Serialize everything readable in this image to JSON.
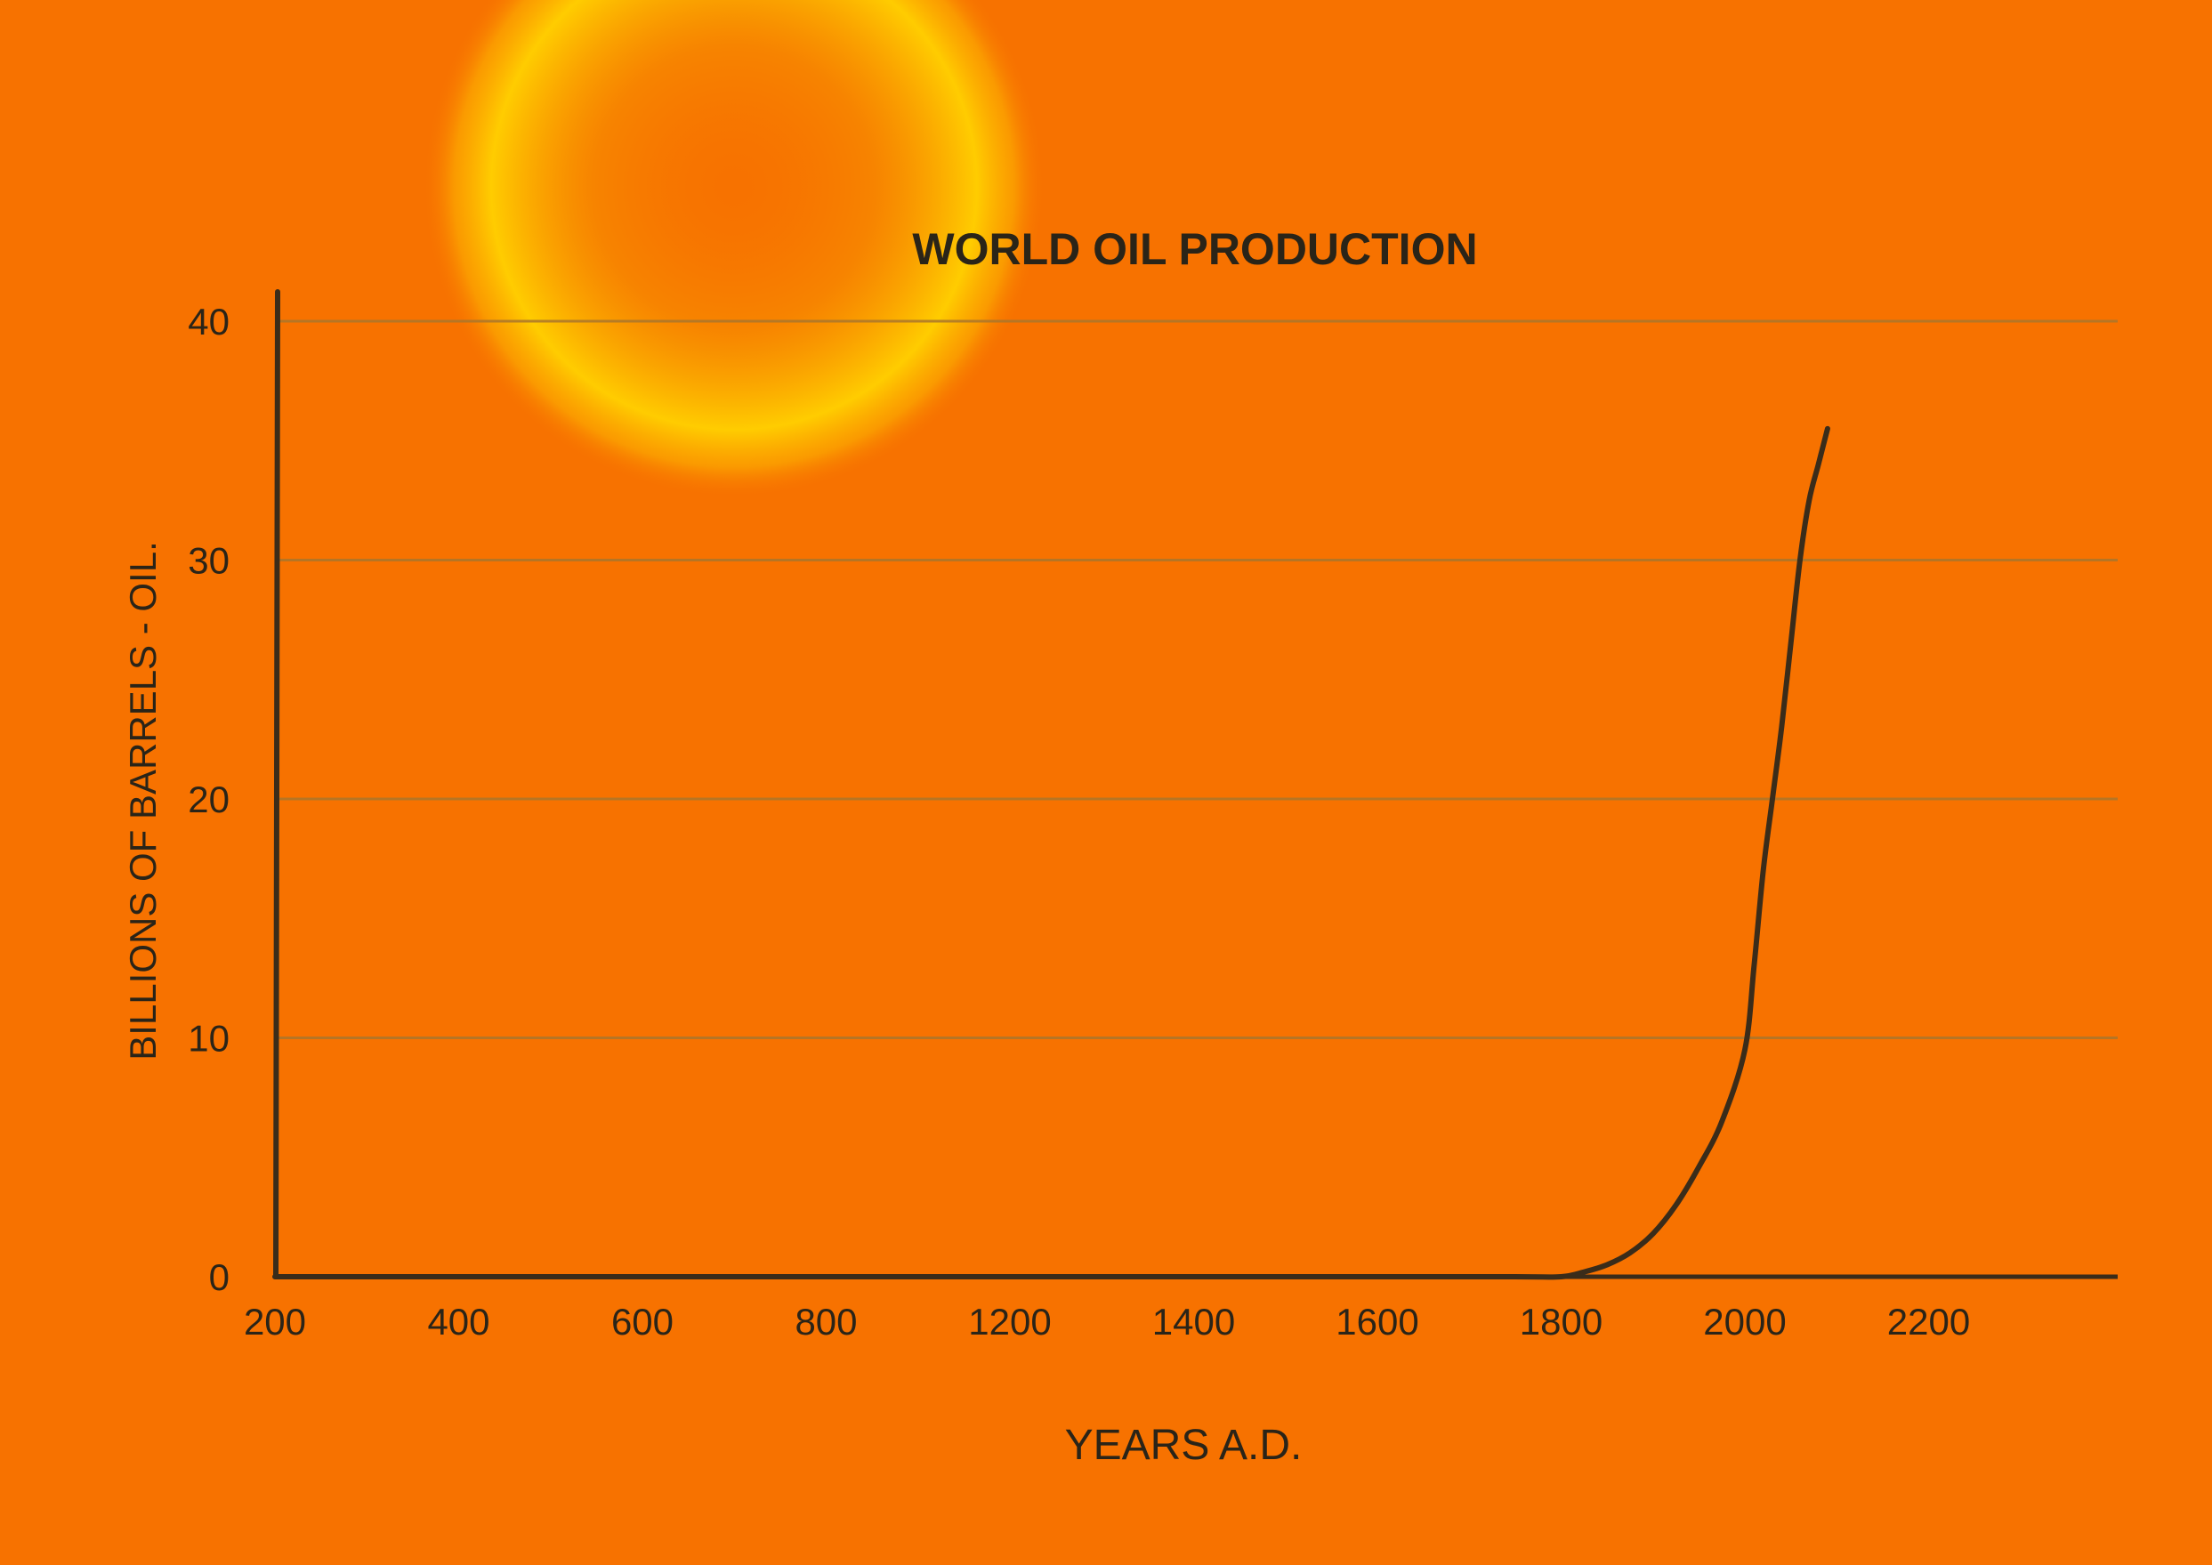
{
  "chart_data": {
    "type": "line",
    "title": "WORLD OIL PRODUCTION",
    "xlabel": "YEARS A.D.",
    "ylabel": "BILLIONS OF BARRELS - OIL.",
    "x_ticks": [
      {
        "label": "200",
        "pos": 0
      },
      {
        "label": "400",
        "pos": 1
      },
      {
        "label": "600",
        "pos": 2
      },
      {
        "label": "800",
        "pos": 3
      },
      {
        "label": "1200",
        "pos": 4
      },
      {
        "label": "1400",
        "pos": 5
      },
      {
        "label": "1600",
        "pos": 6
      },
      {
        "label": "1800",
        "pos": 7
      },
      {
        "label": "2000",
        "pos": 8
      },
      {
        "label": "2200",
        "pos": 9
      }
    ],
    "y_ticks": [
      0,
      10,
      20,
      30,
      40
    ],
    "ylim": [
      0,
      40
    ],
    "grid": "horizontal",
    "series": [
      {
        "color": "#3a2c1a",
        "x": [
          200,
          400,
          600,
          800,
          1200,
          1400,
          1600,
          1750,
          1800,
          1825,
          1850,
          1875,
          1900,
          1925,
          1950,
          1975,
          2000,
          2010,
          2020,
          2030,
          2040,
          2050,
          2060,
          2070,
          2080,
          2090
        ],
        "y": [
          0,
          0,
          0,
          0,
          0,
          0,
          0,
          0,
          0,
          0.2,
          0.5,
          1.0,
          1.8,
          3.0,
          4.6,
          6.5,
          9.5,
          13.0,
          17.0,
          20.0,
          23.0,
          26.5,
          30.0,
          32.5,
          34.0,
          35.5
        ]
      }
    ],
    "colors": {
      "background": "#f77200",
      "sun_core": "#f5a800",
      "sun_ring": "#ffd200",
      "gridline": "#a9762c",
      "axis": "#3a2c1a",
      "text": "#2a2418"
    }
  }
}
